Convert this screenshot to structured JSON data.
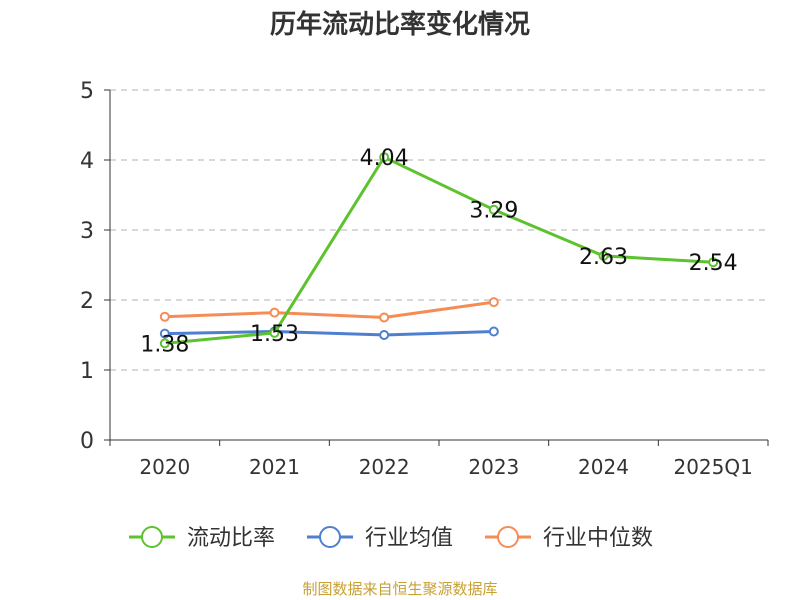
{
  "title": "历年流动比率变化情况",
  "source": "制图数据来自恒生聚源数据库",
  "chart_data": {
    "type": "line",
    "categories": [
      "2020",
      "2021",
      "2022",
      "2023",
      "2024",
      "2025Q1"
    ],
    "ylim": [
      0,
      5
    ],
    "yticks": [
      0,
      1,
      2,
      3,
      4,
      5
    ],
    "grid": true,
    "legend": "bottom",
    "series": [
      {
        "name": "流动比率",
        "color": "#5cc22e",
        "values": [
          1.38,
          1.53,
          4.04,
          3.29,
          2.63,
          2.54
        ],
        "labels": [
          "1.38",
          "1.53",
          "4.04",
          "3.29",
          "2.63",
          "2.54"
        ]
      },
      {
        "name": "行业均值",
        "color": "#4f7fd1",
        "values": [
          1.52,
          1.55,
          1.5,
          1.55,
          null,
          null
        ]
      },
      {
        "name": "行业中位数",
        "color": "#f58c56",
        "values": [
          1.76,
          1.82,
          1.75,
          1.97,
          null,
          null
        ]
      }
    ]
  }
}
